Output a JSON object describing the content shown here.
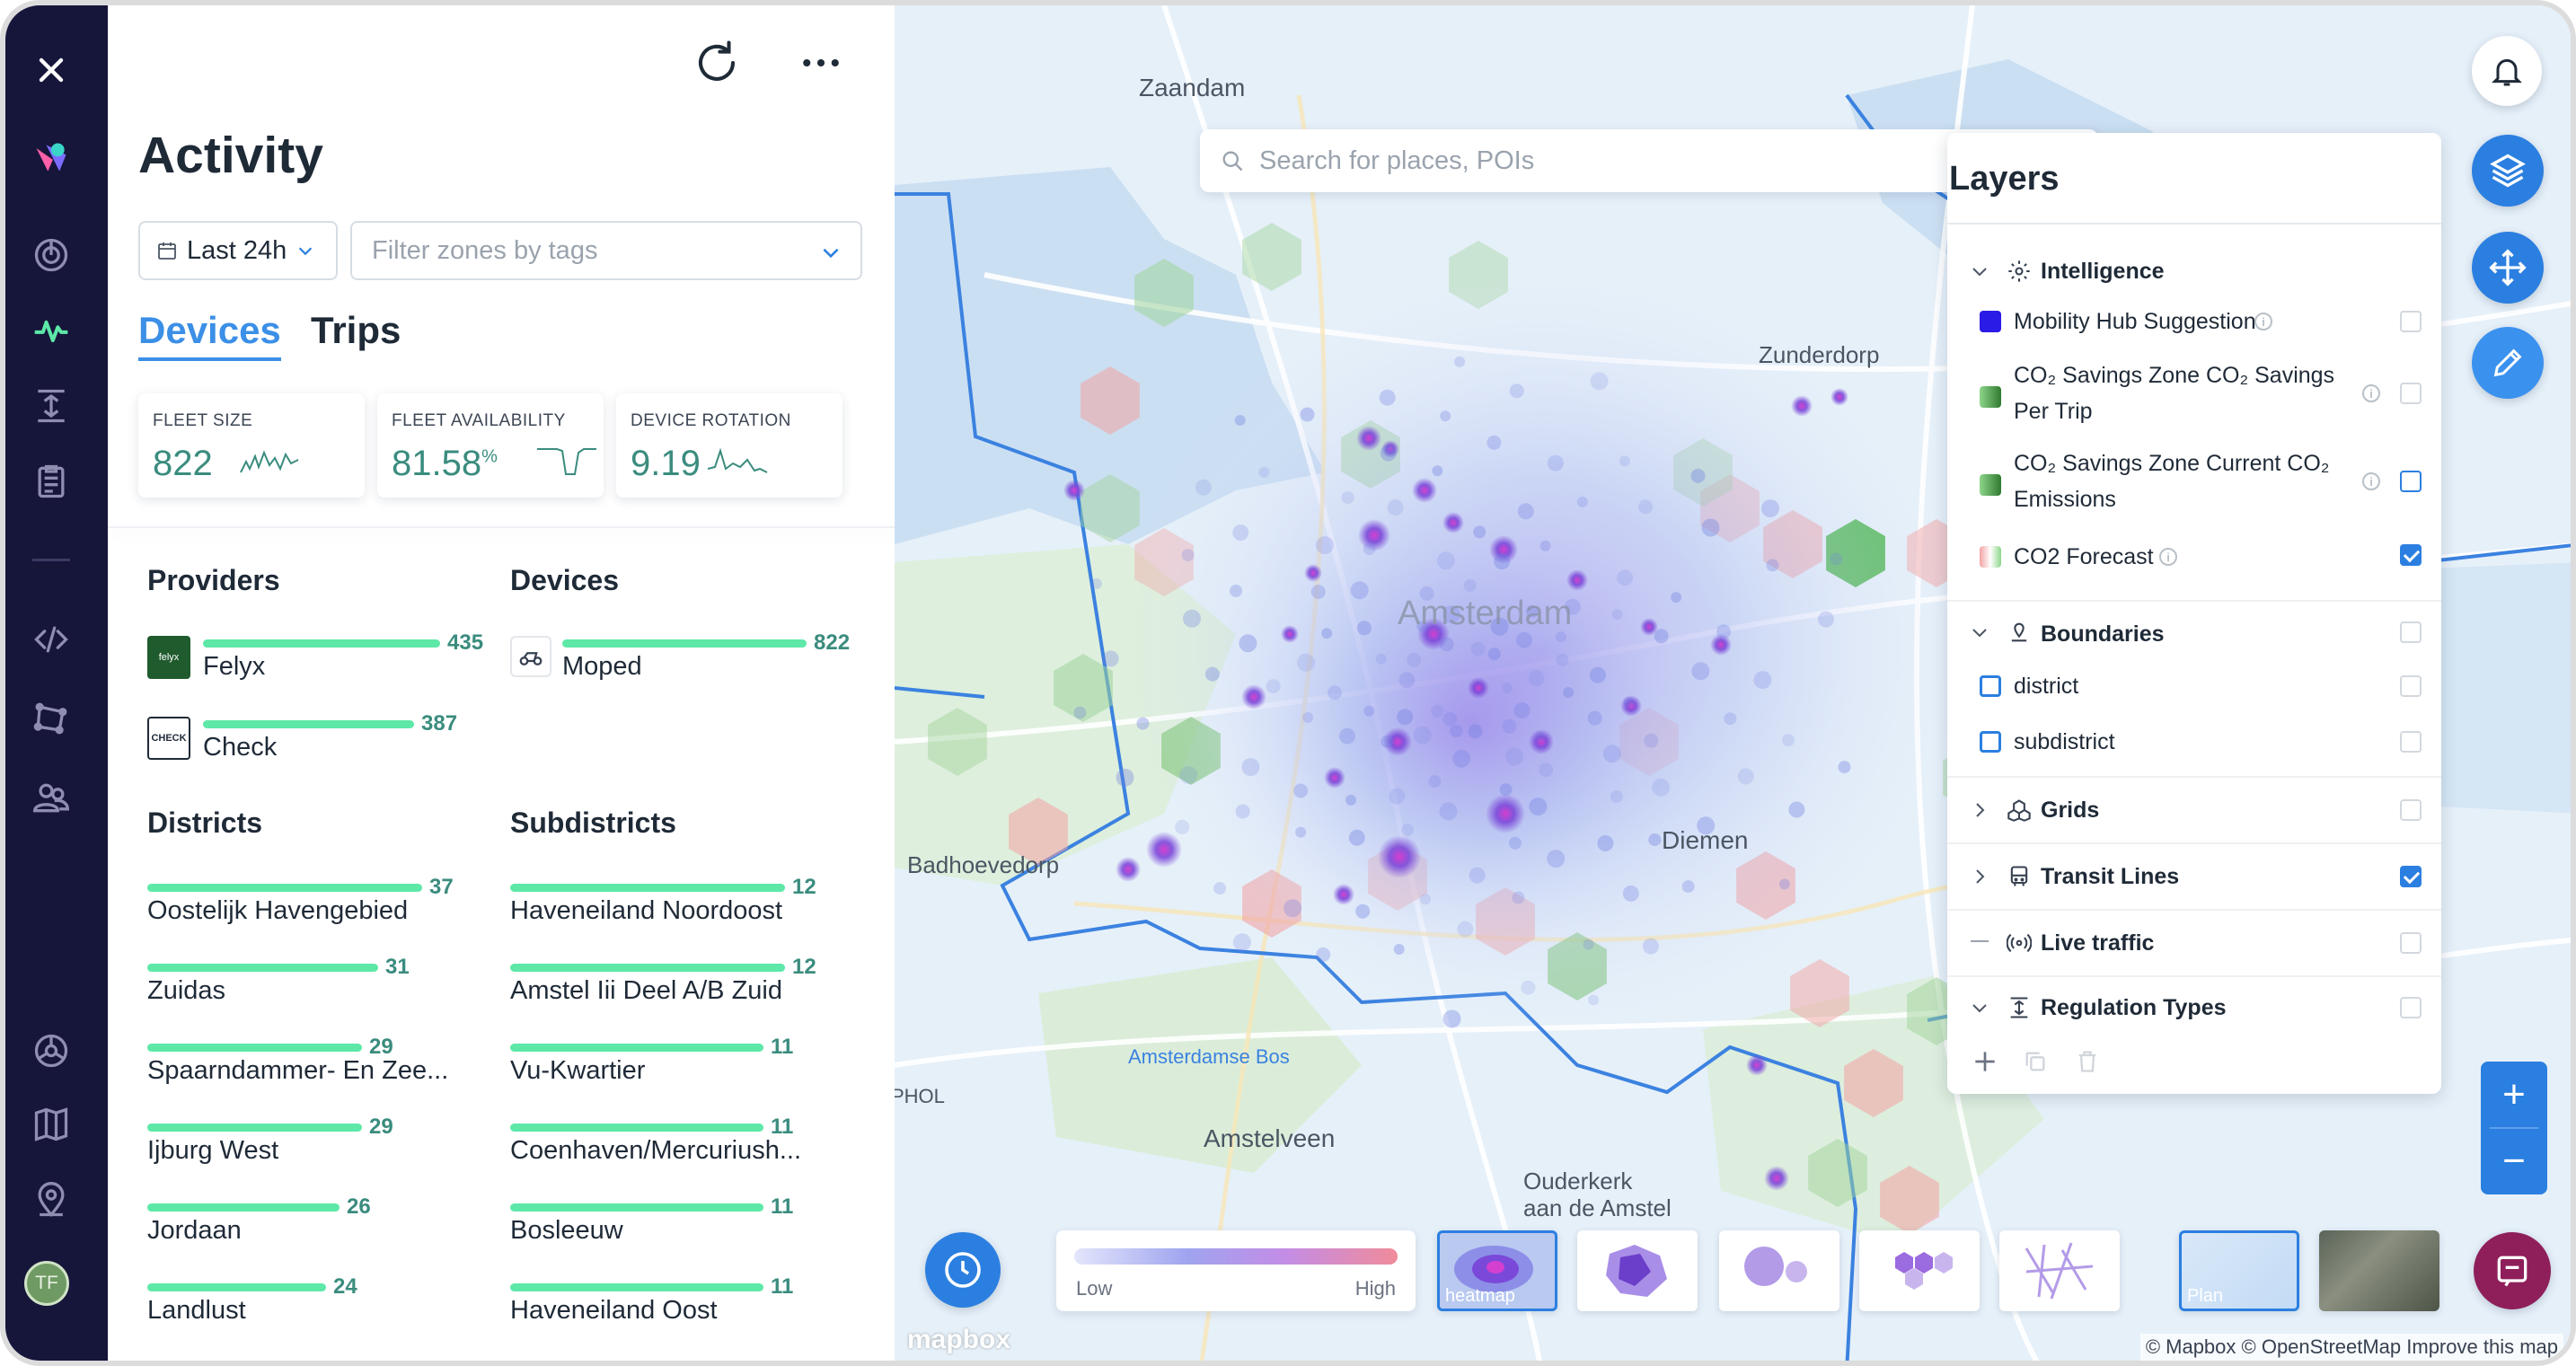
{
  "sidebar": {
    "icons": [
      "close-icon",
      "brand-logo",
      "gauge-icon",
      "activity-icon",
      "distribute-icon",
      "clipboard-icon",
      "code-icon",
      "polygon-icon",
      "users-icon",
      "settings-icon",
      "book-icon",
      "location-pin-icon"
    ],
    "avatar_initials": "TF"
  },
  "panel": {
    "title": "Activity",
    "date_range": "Last 24h",
    "tag_filter_placeholder": "Filter zones by tags",
    "tabs": [
      "Devices",
      "Trips"
    ],
    "kpis": [
      {
        "label": "FLEET SIZE",
        "value": "822",
        "unit": ""
      },
      {
        "label": "FLEET AVAILABILITY",
        "value": "81.58",
        "unit": "%"
      },
      {
        "label": "DEVICE ROTATION",
        "value": "9.19",
        "unit": ""
      }
    ],
    "providers": {
      "title": "Providers",
      "items": [
        {
          "name": "Felyx",
          "value": "435",
          "fraction": 1.0,
          "logo": "felyx"
        },
        {
          "name": "Check",
          "value": "387",
          "fraction": 0.89,
          "logo": "CHECK"
        }
      ]
    },
    "devices": {
      "title": "Devices",
      "items": [
        {
          "name": "Moped",
          "value": "822",
          "fraction": 1.0
        }
      ]
    },
    "districts": {
      "title": "Districts",
      "items": [
        {
          "name": "Oostelijk Havengebied",
          "value": "37",
          "fraction": 1.0
        },
        {
          "name": "Zuidas",
          "value": "31",
          "fraction": 0.84
        },
        {
          "name": "Spaarndammer- En Zee...",
          "value": "29",
          "fraction": 0.78
        },
        {
          "name": "Ijburg West",
          "value": "29",
          "fraction": 0.78
        },
        {
          "name": "Jordaan",
          "value": "26",
          "fraction": 0.7
        },
        {
          "name": "Landlust",
          "value": "24",
          "fraction": 0.65
        }
      ]
    },
    "subdistricts": {
      "title": "Subdistricts",
      "items": [
        {
          "name": "Haveneiland Noordoost",
          "value": "12",
          "fraction": 1.0
        },
        {
          "name": "Amstel Iii Deel A/B Zuid",
          "value": "12",
          "fraction": 1.0
        },
        {
          "name": "Vu-Kwartier",
          "value": "11",
          "fraction": 0.92
        },
        {
          "name": "Coenhaven/Mercuriush...",
          "value": "11",
          "fraction": 0.92
        },
        {
          "name": "Bosleeuw",
          "value": "11",
          "fraction": 0.92
        },
        {
          "name": "Haveneiland Oost",
          "value": "11",
          "fraction": 0.92
        }
      ]
    }
  },
  "map": {
    "search_placeholder": "Search for places, POIs",
    "place_labels": [
      "Zaandam",
      "Zunderdorp",
      "Amsterdam",
      "Badhoevedorp",
      "Diemen",
      "Amsterdamse Bos",
      "Amstelveen",
      "Ouderkerk aan de Amstel",
      "PHOL"
    ],
    "legend": {
      "low": "Low",
      "high": "High"
    },
    "view_modes": [
      "heatmap",
      "zones",
      "bubbles",
      "hexagons",
      "lines"
    ],
    "basemaps": [
      "Plan",
      "Satellite"
    ],
    "attribution": "© Mapbox © OpenStreetMap Improve this map",
    "mapbox_logo": "mapbox",
    "colors": {
      "accent": "#2b7fe0",
      "chat": "#8e1f5a",
      "bar": "#5de8a8"
    }
  },
  "layers": {
    "title": "Layers",
    "groups": {
      "intelligence": "Intelligence",
      "mobility_hub": "Mobility Hub Suggestion",
      "co2_savings_per_trip_1": "CO₂ Savings Zone CO₂ Savings",
      "co2_savings_per_trip_2": "Per Trip",
      "co2_savings_current_1": "CO₂ Savings Zone Current CO₂",
      "co2_savings_current_2": "Emissions",
      "co2_forecast": "CO2 Forecast",
      "boundaries": "Boundaries",
      "district": "district",
      "subdistrict": "subdistrict",
      "grids": "Grids",
      "transit_lines": "Transit Lines",
      "live_traffic": "Live traffic",
      "regulation_types": "Regulation Types"
    }
  }
}
